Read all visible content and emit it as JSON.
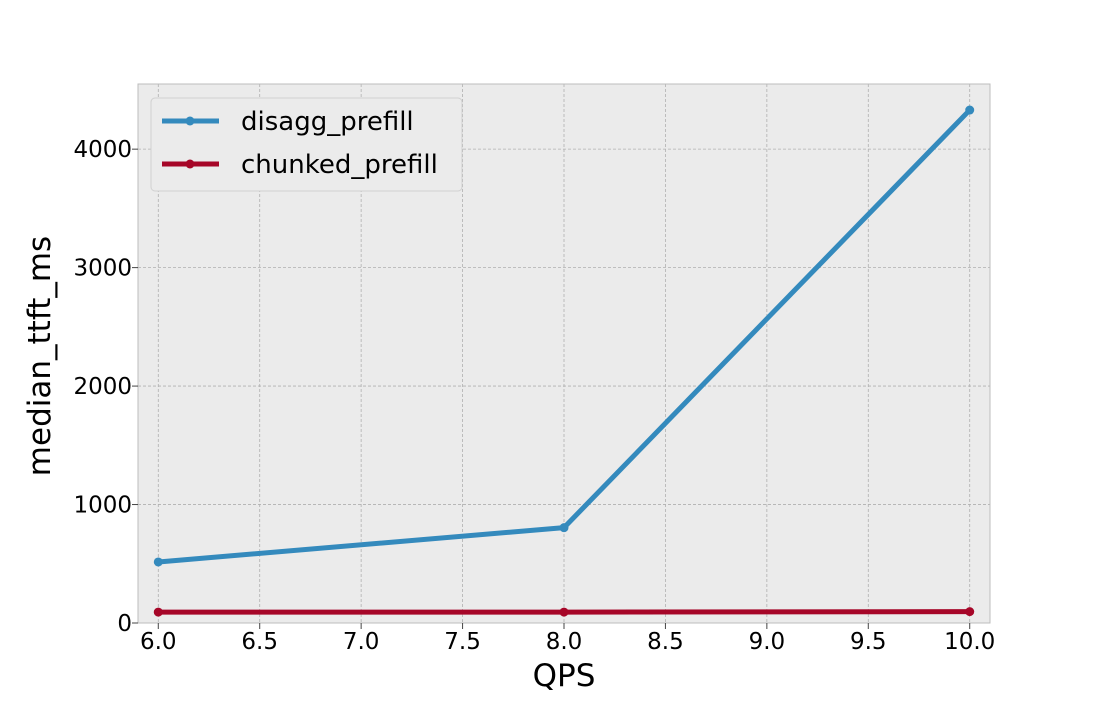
{
  "chart_data": {
    "type": "line",
    "title": "",
    "xlabel": "QPS",
    "ylabel": "median_ttft_ms",
    "x": [
      6.0,
      8.0,
      10.0
    ],
    "xlim": [
      5.9,
      10.1
    ],
    "ylim": [
      0,
      4550
    ],
    "xticks": [
      6.0,
      6.5,
      7.0,
      7.5,
      8.0,
      8.5,
      9.0,
      9.5,
      10.0
    ],
    "xtick_labels": [
      "6.0",
      "6.5",
      "7.0",
      "7.5",
      "8.0",
      "8.5",
      "9.0",
      "9.5",
      "10.0"
    ],
    "yticks": [
      0,
      1000,
      2000,
      3000,
      4000
    ],
    "ytick_labels": [
      "0",
      "1000",
      "2000",
      "3000",
      "4000"
    ],
    "grid": true,
    "legend_position": "top-left",
    "series": [
      {
        "name": "disagg_prefill",
        "color": "#348abd",
        "values": [
          515,
          805,
          4330
        ]
      },
      {
        "name": "chunked_prefill",
        "color": "#a60628",
        "values": [
          92,
          92,
          96
        ]
      }
    ],
    "colors": {
      "plot_background": "#ebebeb",
      "grid": "#b0b0b0",
      "frame": "#bcbcbc"
    }
  }
}
